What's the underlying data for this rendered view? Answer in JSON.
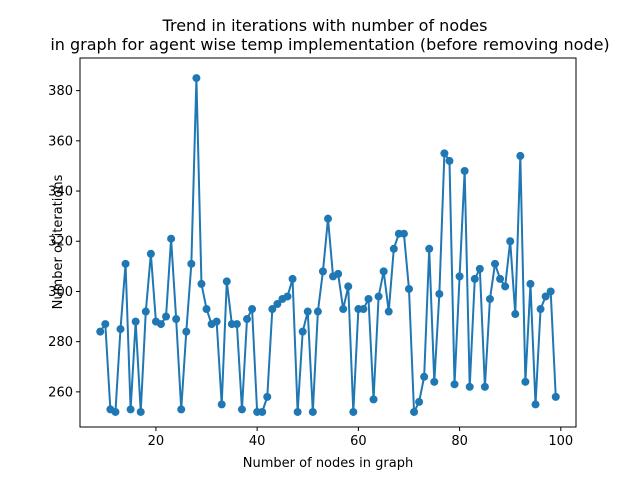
{
  "chart_data": {
    "type": "line",
    "title_line1": "Trend in iterations with number of nodes",
    "title_line2": "in graph for agent wise temp implementation (before removing node)",
    "xlabel": "Number of nodes in graph",
    "ylabel": "Number of iterations",
    "xlim": [
      5,
      103
    ],
    "ylim": [
      246,
      393
    ],
    "xticks": [
      20,
      40,
      60,
      80,
      100
    ],
    "yticks": [
      260,
      280,
      300,
      320,
      340,
      360,
      380
    ],
    "grid": false,
    "color": "#1f77b4",
    "x": [
      9,
      10,
      11,
      12,
      13,
      14,
      15,
      16,
      17,
      18,
      19,
      20,
      21,
      22,
      23,
      24,
      25,
      26,
      27,
      28,
      29,
      30,
      31,
      32,
      33,
      34,
      35,
      36,
      37,
      38,
      39,
      40,
      41,
      42,
      43,
      44,
      45,
      46,
      47,
      48,
      49,
      50,
      51,
      52,
      53,
      54,
      55,
      56,
      57,
      58,
      59,
      60,
      61,
      62,
      63,
      64,
      65,
      66,
      67,
      68,
      69,
      70,
      71,
      72,
      73,
      74,
      75,
      76,
      77,
      78,
      79,
      80,
      81,
      82,
      83,
      84,
      85,
      86,
      87,
      88,
      89,
      90,
      91,
      92,
      93,
      94,
      95,
      96,
      97,
      98,
      99
    ],
    "y": [
      284,
      287,
      253,
      252,
      285,
      311,
      253,
      288,
      252,
      292,
      315,
      288,
      287,
      290,
      321,
      289,
      253,
      284,
      311,
      385,
      303,
      293,
      287,
      288,
      255,
      304,
      287,
      287,
      253,
      289,
      293,
      252,
      252,
      258,
      293,
      295,
      297,
      298,
      305,
      252,
      284,
      292,
      252,
      292,
      308,
      329,
      306,
      307,
      293,
      302,
      252,
      293,
      293,
      297,
      257,
      298,
      308,
      292,
      317,
      323,
      323,
      301,
      252,
      256,
      266,
      317,
      264,
      299,
      355,
      352,
      263,
      306,
      348,
      262,
      305,
      309,
      262,
      297,
      311,
      305,
      302,
      320,
      291,
      354,
      264,
      303,
      255,
      293,
      298,
      300,
      258
    ]
  }
}
